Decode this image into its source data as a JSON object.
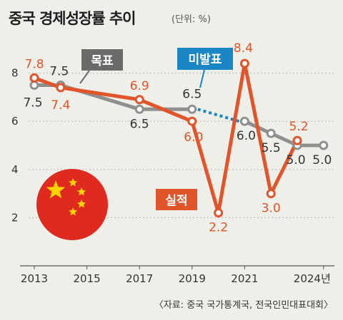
{
  "title": "중국 경제성장률 추이",
  "subtitle": "(단위: %)",
  "source": "〈자료: 중국 국가통계국, 전국인민대표대회〉",
  "colors": {
    "actual": "#e2542a",
    "target": "#8f8f8f",
    "unannounced": "#1b86c6",
    "background": "#efefea"
  },
  "chart_data": {
    "type": "line",
    "x": [
      2013,
      2014,
      2015,
      2016,
      2017,
      2018,
      2019,
      2020,
      2021,
      2022,
      2023,
      2024
    ],
    "x_tick_labels": [
      "2013",
      "2015",
      "2017",
      "2019",
      "2021",
      "2024년"
    ],
    "y_ticks": [
      2,
      4,
      6,
      8
    ],
    "ylim": [
      0,
      9
    ],
    "series": [
      {
        "name": "목표",
        "color": "#8f8f8f",
        "values": [
          7.5,
          7.5,
          null,
          null,
          6.5,
          null,
          6.5,
          null,
          6.0,
          5.5,
          5.0,
          5.0
        ],
        "labels": [
          "7.5",
          "7.5",
          null,
          null,
          "6.5",
          null,
          "6.5",
          null,
          "6.0",
          "5.5",
          "5.0",
          "5.0"
        ]
      },
      {
        "name": "실적",
        "color": "#e2542a",
        "values": [
          7.8,
          7.4,
          null,
          null,
          6.9,
          null,
          6.0,
          2.2,
          8.4,
          3.0,
          5.2,
          null
        ],
        "labels": [
          "7.8",
          "7.4",
          null,
          null,
          "6.9",
          null,
          "6.0",
          "2.2",
          "8.4",
          "3.0",
          "5.2",
          null
        ]
      }
    ],
    "annotations": [
      {
        "text": "목표",
        "x": 2015
      },
      {
        "text": "미발표",
        "x": 2020
      },
      {
        "text": "실적",
        "x": 2019
      }
    ]
  }
}
